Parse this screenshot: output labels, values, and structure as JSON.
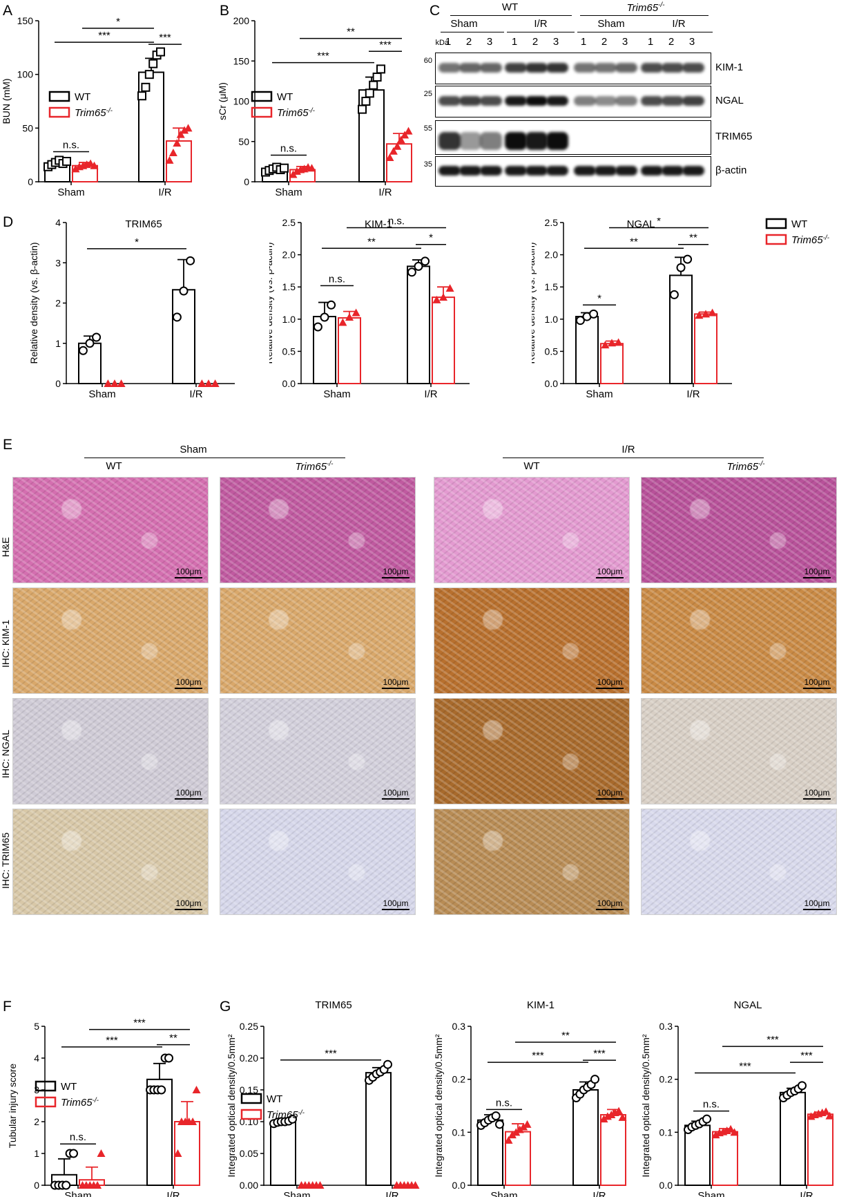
{
  "panels": {
    "A": {
      "label": "A"
    },
    "B": {
      "label": "B"
    },
    "C": {
      "label": "C"
    },
    "D": {
      "label": "D"
    },
    "E": {
      "label": "E"
    },
    "F": {
      "label": "F"
    },
    "G": {
      "label": "G"
    }
  },
  "colors": {
    "wt": "#000000",
    "ko": "#e8252a"
  },
  "legend": {
    "wt": "WT",
    "ko": "Trim65",
    "ko_sup": "-/-"
  },
  "blot": {
    "kda_label": "kDa",
    "group_wt": "WT",
    "group_ko": "Trim65",
    "group_ko_sup": "-/-",
    "sub_sham": "Sham",
    "sub_ir": "I/R",
    "lanes": [
      "1",
      "2",
      "3",
      "1",
      "2",
      "3",
      "1",
      "2",
      "3",
      "1",
      "2",
      "3"
    ],
    "bands": [
      {
        "name": "KIM-1",
        "kda": "60"
      },
      {
        "name": "NGAL",
        "kda": "25"
      },
      {
        "name": "TRIM65",
        "kda": "55"
      },
      {
        "name": "β-actin",
        "kda": "35"
      }
    ]
  },
  "histology": {
    "sham_header": "Sham",
    "ir_header": "I/R",
    "wt": "WT",
    "ko": "Trim65",
    "ko_sup": "-/-",
    "rows": [
      "H&E",
      "IHC: KIM-1",
      "IHC: NGAL",
      "IHC: TRIM65"
    ],
    "scale_bar": "100μm"
  },
  "chart_data": [
    {
      "id": "A",
      "type": "bar",
      "categories": [
        "Sham",
        "I/R"
      ],
      "ylabel": "BUN (mM)",
      "ylim": [
        0,
        150
      ],
      "yticks": [
        0,
        50,
        100,
        150
      ],
      "series": [
        {
          "name": "WT",
          "values": [
            17,
            102
          ],
          "err": [
            4,
            13
          ],
          "points": [
            [
              14,
              16,
              18,
              20,
              17,
              19
            ],
            [
              80,
              88,
              100,
              110,
              118,
              121
            ]
          ]
        },
        {
          "name": "Trim65-/-",
          "values": [
            15,
            38
          ],
          "err": [
            3,
            12
          ],
          "points": [
            [
              12,
              14,
              15,
              16,
              17,
              15
            ],
            [
              20,
              27,
              36,
              44,
              48,
              50
            ]
          ]
        }
      ],
      "annotations": [
        {
          "from": 0,
          "to": 1,
          "text": "n.s.",
          "y": 28,
          "pair": "sham"
        },
        {
          "text": "***",
          "y": 130,
          "g1": 0,
          "s1": 0,
          "g2": 1,
          "s2": 0
        },
        {
          "text": "*",
          "y": 143,
          "g1": 0,
          "s1": 1,
          "g2": 1,
          "s2": 0
        },
        {
          "text": "***",
          "y": 128,
          "g1": 1,
          "s1": 0,
          "g2": 1,
          "s2": 1,
          "short": true
        }
      ]
    },
    {
      "id": "B",
      "type": "bar",
      "categories": [
        "Sham",
        "I/R"
      ],
      "ylabel": "sCr (μM)",
      "ylim": [
        0,
        200
      ],
      "yticks": [
        0,
        50,
        100,
        150,
        200
      ],
      "series": [
        {
          "name": "WT",
          "values": [
            15,
            114
          ],
          "err": [
            4,
            16
          ],
          "points": [
            [
              12,
              14,
              16,
              18,
              15,
              17
            ],
            [
              90,
              100,
              110,
              120,
              130,
              140
            ]
          ]
        },
        {
          "name": "Trim65-/-",
          "values": [
            15,
            47
          ],
          "err": [
            4,
            13
          ],
          "points": [
            [
              9,
              13,
              15,
              16,
              18,
              17
            ],
            [
              30,
              38,
              44,
              52,
              58,
              63
            ]
          ]
        }
      ],
      "annotations": [
        {
          "text": "n.s.",
          "y": 33,
          "pair": "sham"
        },
        {
          "text": "***",
          "y": 148,
          "g1": 0,
          "s1": 0,
          "g2": 1,
          "s2": 0
        },
        {
          "text": "**",
          "y": 178,
          "g1": 0,
          "s1": 1,
          "g2": 1,
          "s2": 1
        },
        {
          "text": "***",
          "y": 162,
          "g1": 1,
          "s1": 0,
          "g2": 1,
          "s2": 1,
          "short": true
        }
      ]
    },
    {
      "id": "D1",
      "type": "bar",
      "title": "TRIM65",
      "categories": [
        "Sham",
        "I/R"
      ],
      "ylabel": "Relative density (vs. β-actin)",
      "ylim": [
        0,
        4
      ],
      "yticks": [
        0,
        1,
        2,
        3,
        4
      ],
      "series": [
        {
          "name": "WT",
          "values": [
            1.0,
            2.33
          ],
          "err": [
            0.18,
            0.75
          ],
          "marker": "circle",
          "points": [
            [
              0.82,
              1.0,
              1.15
            ],
            [
              1.65,
              2.3,
              3.05
            ]
          ]
        },
        {
          "name": "Trim65-/-",
          "values": [
            0,
            0
          ],
          "err": [
            0,
            0
          ],
          "points": [
            [
              0,
              0,
              0
            ],
            [
              0,
              0,
              0
            ]
          ]
        }
      ],
      "annotations": [
        {
          "text": "*",
          "y": 3.35,
          "g1": 0,
          "s1": 0,
          "g2": 1,
          "s2": 0
        }
      ]
    },
    {
      "id": "D2",
      "type": "bar",
      "title": "KIM-1",
      "categories": [
        "Sham",
        "I/R"
      ],
      "ylabel": "Relative density (vs. β-actin)",
      "ylim": [
        0,
        2.5
      ],
      "yticks": [
        0,
        0.5,
        1.0,
        1.5,
        2.0,
        2.5
      ],
      "series": [
        {
          "name": "WT",
          "values": [
            1.04,
            1.82
          ],
          "err": [
            0.22,
            0.1
          ],
          "marker": "circle",
          "points": [
            [
              0.88,
              1.03,
              1.22
            ],
            [
              1.73,
              1.82,
              1.9
            ]
          ]
        },
        {
          "name": "Trim65-/-",
          "values": [
            1.02,
            1.34
          ],
          "err": [
            0.1,
            0.16
          ],
          "points": [
            [
              0.95,
              1.03,
              1.1
            ],
            [
              1.3,
              1.34,
              1.48
            ]
          ]
        }
      ],
      "annotations": [
        {
          "text": "n.s.",
          "y": 1.52,
          "pair": "sham"
        },
        {
          "text": "**",
          "y": 2.1,
          "g1": 0,
          "s1": 0,
          "g2": 1,
          "s2": 0
        },
        {
          "text": "n.s.",
          "y": 2.42,
          "g1": 0,
          "s1": 1,
          "g2": 1,
          "s2": 1
        },
        {
          "text": "*",
          "y": 2.16,
          "g1": 1,
          "s1": 0,
          "g2": 1,
          "s2": 1,
          "short": true
        }
      ]
    },
    {
      "id": "D3",
      "type": "bar",
      "title": "NGAL",
      "categories": [
        "Sham",
        "I/R"
      ],
      "ylabel": "Relative density (vs. β-actin)",
      "ylim": [
        0,
        2.5
      ],
      "yticks": [
        0,
        0.5,
        1.0,
        1.5,
        2.0,
        2.5
      ],
      "series": [
        {
          "name": "WT",
          "values": [
            1.04,
            1.68
          ],
          "err": [
            0.06,
            0.28
          ],
          "marker": "circle",
          "points": [
            [
              0.98,
              1.04,
              1.08
            ],
            [
              1.38,
              1.8,
              1.93
            ]
          ]
        },
        {
          "name": "Trim65-/-",
          "values": [
            0.62,
            1.08
          ],
          "err": [
            0.04,
            0.03
          ],
          "points": [
            [
              0.6,
              0.63,
              0.64
            ],
            [
              1.06,
              1.08,
              1.1
            ]
          ]
        }
      ],
      "annotations": [
        {
          "text": "*",
          "y": 1.22,
          "pair": "sham"
        },
        {
          "text": "**",
          "y": 2.1,
          "g1": 0,
          "s1": 0,
          "g2": 1,
          "s2": 0
        },
        {
          "text": "*",
          "y": 2.42,
          "g1": 0,
          "s1": 1,
          "g2": 1,
          "s2": 1
        },
        {
          "text": "**",
          "y": 2.16,
          "g1": 1,
          "s1": 0,
          "g2": 1,
          "s2": 1,
          "short": true
        }
      ]
    },
    {
      "id": "F",
      "type": "bar",
      "categories": [
        "Sham",
        "I/R"
      ],
      "ylabel": "Tubular injury score",
      "ylim": [
        0,
        5
      ],
      "yticks": [
        0,
        1,
        2,
        3,
        4,
        5
      ],
      "series": [
        {
          "name": "WT",
          "values": [
            0.33,
            3.33
          ],
          "err": [
            0.5,
            0.5
          ],
          "marker": "circle",
          "points": [
            [
              0,
              0,
              0,
              0,
              1,
              1
            ],
            [
              3,
              3,
              3,
              3,
              4,
              4
            ]
          ]
        },
        {
          "name": "Trim65-/-",
          "values": [
            0.17,
            2.0
          ],
          "err": [
            0.4,
            0.63
          ],
          "points": [
            [
              0,
              0,
              0,
              0,
              0,
              1
            ],
            [
              1,
              2,
              2,
              2,
              2,
              3
            ]
          ]
        }
      ],
      "annotations": [
        {
          "text": "n.s.",
          "y": 1.3,
          "pair": "sham"
        },
        {
          "text": "***",
          "y": 4.35,
          "g1": 0,
          "s1": 0,
          "g2": 1,
          "s2": 0
        },
        {
          "text": "***",
          "y": 4.9,
          "g1": 0,
          "s1": 1,
          "g2": 1,
          "s2": 1
        },
        {
          "text": "**",
          "y": 4.42,
          "g1": 1,
          "s1": 0,
          "g2": 1,
          "s2": 1,
          "short": true
        }
      ]
    },
    {
      "id": "G1",
      "type": "bar",
      "title": "TRIM65",
      "categories": [
        "Sham",
        "I/R"
      ],
      "ylabel": "Integrated optical density/0.5mm²",
      "ylim": [
        0,
        0.25
      ],
      "yticks": [
        0,
        0.05,
        0.1,
        0.15,
        0.2,
        0.25
      ],
      "series": [
        {
          "name": "WT",
          "values": [
            0.1,
            0.177
          ],
          "err": [
            0.003,
            0.008
          ],
          "marker": "circle",
          "points": [
            [
              0.097,
              0.099,
              0.1,
              0.1,
              0.101,
              0.104
            ],
            [
              0.165,
              0.17,
              0.175,
              0.178,
              0.182,
              0.19
            ]
          ]
        },
        {
          "name": "Trim65-/-",
          "values": [
            0,
            0
          ],
          "err": [
            0,
            0
          ],
          "points": [
            [
              0,
              0,
              0,
              0,
              0,
              0
            ],
            [
              0,
              0,
              0,
              0,
              0,
              0
            ]
          ]
        }
      ],
      "annotations": [
        {
          "text": "***",
          "y": 0.197,
          "g1": 0,
          "s1": 0,
          "g2": 1,
          "s2": 0
        }
      ]
    },
    {
      "id": "G2",
      "type": "bar",
      "title": "KIM-1",
      "categories": [
        "Sham",
        "I/R"
      ],
      "ylabel": "Integrated optical density/0.5mm²",
      "ylim": [
        0,
        0.3
      ],
      "yticks": [
        0,
        0.1,
        0.2,
        0.3
      ],
      "series": [
        {
          "name": "WT",
          "values": [
            0.123,
            0.18
          ],
          "err": [
            0.01,
            0.015
          ],
          "marker": "circle",
          "points": [
            [
              0.113,
              0.118,
              0.123,
              0.127,
              0.131,
              0.115
            ],
            [
              0.165,
              0.172,
              0.18,
              0.185,
              0.19,
              0.2
            ]
          ]
        },
        {
          "name": "Trim65-/-",
          "values": [
            0.101,
            0.133
          ],
          "err": [
            0.015,
            0.01
          ],
          "points": [
            [
              0.085,
              0.095,
              0.1,
              0.105,
              0.11,
              0.115
            ],
            [
              0.125,
              0.13,
              0.133,
              0.137,
              0.14,
              0.128
            ]
          ]
        }
      ],
      "annotations": [
        {
          "text": "n.s.",
          "y": 0.143,
          "pair": "sham"
        },
        {
          "text": "***",
          "y": 0.232,
          "g1": 0,
          "s1": 0,
          "g2": 1,
          "s2": 0
        },
        {
          "text": "**",
          "y": 0.27,
          "g1": 0,
          "s1": 1,
          "g2": 1,
          "s2": 1
        },
        {
          "text": "***",
          "y": 0.236,
          "g1": 1,
          "s1": 0,
          "g2": 1,
          "s2": 1,
          "short": true
        }
      ]
    },
    {
      "id": "G3",
      "type": "bar",
      "title": "NGAL",
      "categories": [
        "Sham",
        "I/R"
      ],
      "ylabel": "Integrated optical density/0.5mm²",
      "ylim": [
        0,
        0.3
      ],
      "yticks": [
        0,
        0.1,
        0.2,
        0.3
      ],
      "series": [
        {
          "name": "WT",
          "values": [
            0.113,
            0.175
          ],
          "err": [
            0.008,
            0.008
          ],
          "marker": "circle",
          "points": [
            [
              0.105,
              0.11,
              0.113,
              0.116,
              0.12,
              0.125
            ],
            [
              0.165,
              0.17,
              0.175,
              0.178,
              0.182,
              0.188
            ]
          ]
        },
        {
          "name": "Trim65-/-",
          "values": [
            0.101,
            0.134
          ],
          "err": [
            0.006,
            0.004
          ],
          "points": [
            [
              0.095,
              0.099,
              0.101,
              0.103,
              0.106,
              0.1
            ],
            [
              0.13,
              0.133,
              0.135,
              0.137,
              0.139,
              0.131
            ]
          ]
        }
      ],
      "annotations": [
        {
          "text": "n.s.",
          "y": 0.14,
          "pair": "sham"
        },
        {
          "text": "***",
          "y": 0.212,
          "g1": 0,
          "s1": 0,
          "g2": 1,
          "s2": 0
        },
        {
          "text": "***",
          "y": 0.262,
          "g1": 0,
          "s1": 1,
          "g2": 1,
          "s2": 1
        },
        {
          "text": "***",
          "y": 0.232,
          "g1": 1,
          "s1": 0,
          "g2": 1,
          "s2": 1,
          "short": true
        }
      ]
    }
  ]
}
